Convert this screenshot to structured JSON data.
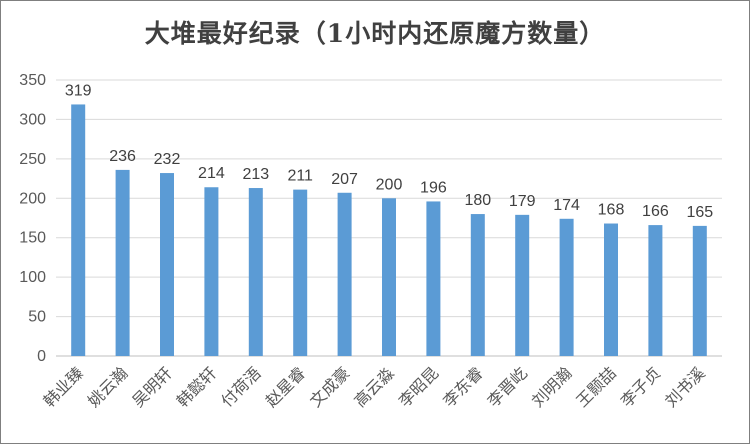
{
  "chart_data": {
    "type": "bar",
    "title": "大堆最好纪录（1小时内还原魔方数量）",
    "xlabel": "",
    "ylabel": "",
    "categories": [
      "韩业臻",
      "姚云瀚",
      "吴明轩",
      "韩懿轩",
      "付荷浯",
      "赵星睿",
      "文成豪",
      "高云淼",
      "李昭昆",
      "李东睿",
      "李晋屹",
      "刘明瀚",
      "王颢喆",
      "李子贞",
      "刘书溪"
    ],
    "values": [
      319,
      236,
      232,
      214,
      213,
      211,
      207,
      200,
      196,
      180,
      179,
      174,
      168,
      166,
      165
    ],
    "ylim": [
      0,
      350
    ],
    "yticks": [
      0,
      50,
      100,
      150,
      200,
      250,
      300,
      350
    ],
    "grid": true,
    "legend": "none",
    "bar_color": "#5b9bd5",
    "grid_color": "#d9d9d9"
  }
}
